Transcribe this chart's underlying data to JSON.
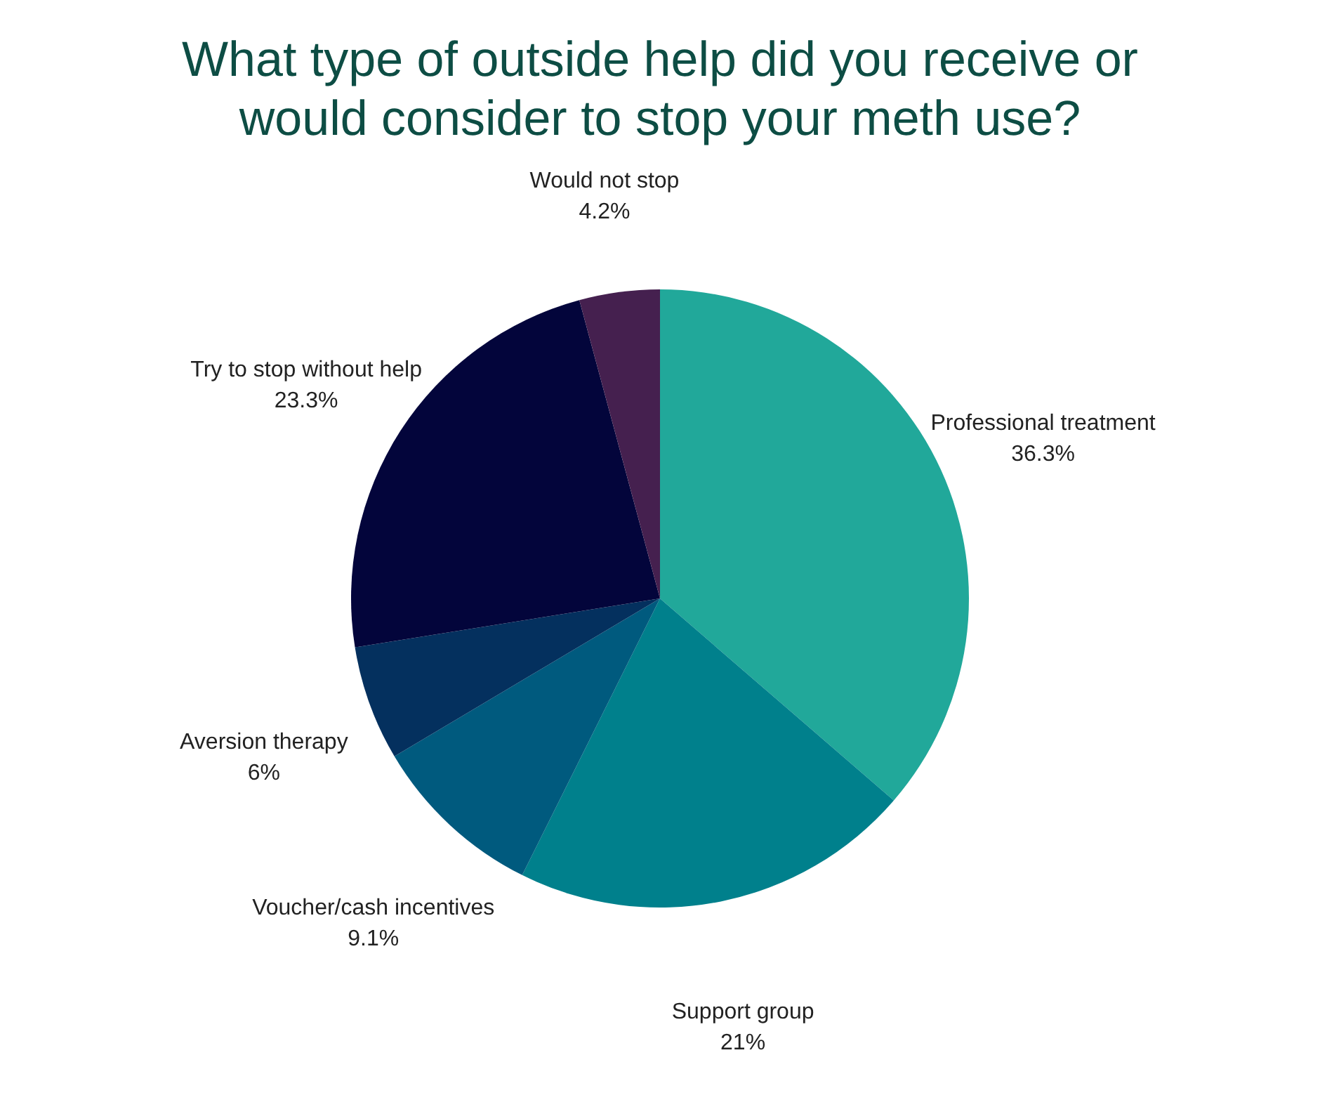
{
  "chart_data": {
    "type": "pie",
    "title": "What type of outside help did you receive or would consider to stop your meth use?",
    "categories": [
      "Professional treatment",
      "Support group",
      "Voucher/cash incentives",
      "Aversion therapy",
      "Try to stop without help",
      "Would not stop"
    ],
    "values": [
      36.3,
      21,
      9.1,
      6,
      23.3,
      4.2
    ],
    "value_labels": [
      "36.3%",
      "21%",
      "9.1%",
      "6%",
      "23.3%",
      "4.2%"
    ],
    "colors": [
      "#21a89a",
      "#00808c",
      "#005a7e",
      "#04305e",
      "#03053b",
      "#45204f"
    ]
  }
}
